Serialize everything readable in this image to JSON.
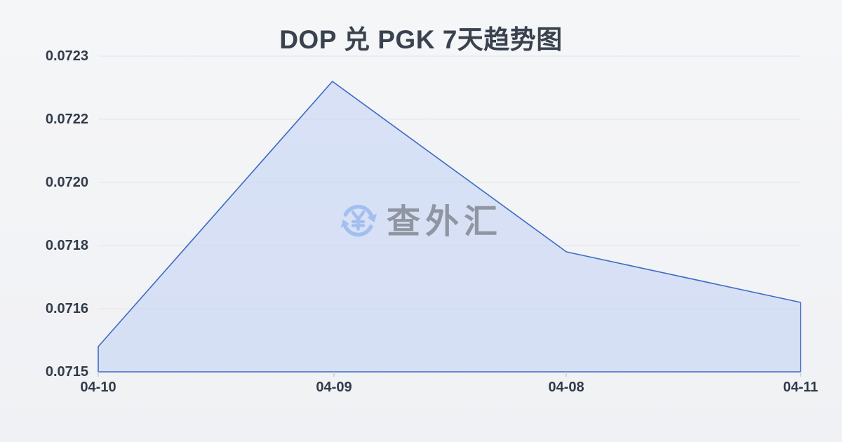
{
  "header": {
    "title": "DOP 兑 PGK 7天趋势图"
  },
  "watermark": {
    "icon": "currency-exchange-icon",
    "text": "查外汇",
    "icon_color": "#a3bff0",
    "text_color": "#8d939d"
  },
  "chart_data": {
    "type": "area",
    "title": "DOP 兑 PGK 7天趋势图",
    "x": [
      "04-10",
      "04-09",
      "04-08",
      "04-11"
    ],
    "values": [
      0.07154,
      0.07226,
      0.07178,
      0.07162
    ],
    "yticks": [
      0.0723,
      0.0722,
      0.072,
      0.0718,
      0.0716,
      0.0715
    ],
    "ytick_labels": [
      "0.0723",
      "0.0722",
      "0.0720",
      "0.0718",
      "0.0716",
      "0.0715"
    ],
    "ylim": [
      0.0715,
      0.0723
    ],
    "grid": true,
    "legend": "none",
    "line_color": "#3e6bc4",
    "fill_color": "#bbcef3",
    "fill_opacity": 0.5,
    "gridline_color": "#e3e5e9"
  }
}
